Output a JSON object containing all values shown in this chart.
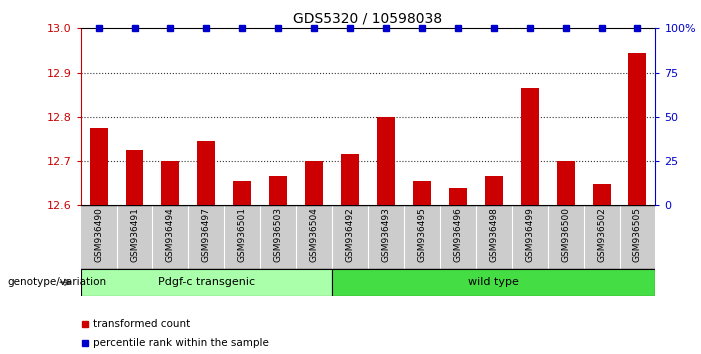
{
  "title": "GDS5320 / 10598038",
  "samples": [
    "GSM936490",
    "GSM936491",
    "GSM936494",
    "GSM936497",
    "GSM936501",
    "GSM936503",
    "GSM936504",
    "GSM936492",
    "GSM936493",
    "GSM936495",
    "GSM936496",
    "GSM936498",
    "GSM936499",
    "GSM936500",
    "GSM936502",
    "GSM936505"
  ],
  "bar_values": [
    12.775,
    12.725,
    12.7,
    12.745,
    12.655,
    12.667,
    12.7,
    12.715,
    12.8,
    12.655,
    12.64,
    12.667,
    12.865,
    12.7,
    12.648,
    12.945
  ],
  "percentile_values": [
    100,
    100,
    100,
    100,
    100,
    100,
    100,
    100,
    100,
    100,
    100,
    100,
    100,
    100,
    100,
    100
  ],
  "bar_color": "#cc0000",
  "percentile_color": "#0000cc",
  "ylim_left": [
    12.6,
    13.0
  ],
  "ylim_right": [
    0,
    100
  ],
  "yticks_left": [
    12.6,
    12.7,
    12.8,
    12.9,
    13.0
  ],
  "yticks_right": [
    0,
    25,
    50,
    75,
    100
  ],
  "ytick_labels_right": [
    "0",
    "25",
    "50",
    "75",
    "100%"
  ],
  "group1_label": "Pdgf-c transgenic",
  "group2_label": "wild type",
  "group1_count": 7,
  "group2_count": 9,
  "group1_color": "#aaffaa",
  "group2_color": "#44dd44",
  "xlabel_label": "genotype/variation",
  "legend_items": [
    {
      "label": "transformed count",
      "color": "#cc0000"
    },
    {
      "label": "percentile rank within the sample",
      "color": "#0000cc"
    }
  ],
  "bar_width": 0.5,
  "tick_bg_color": "#cccccc",
  "gridline_color": "#333333",
  "gridline_vals": [
    12.7,
    12.8,
    12.9
  ]
}
